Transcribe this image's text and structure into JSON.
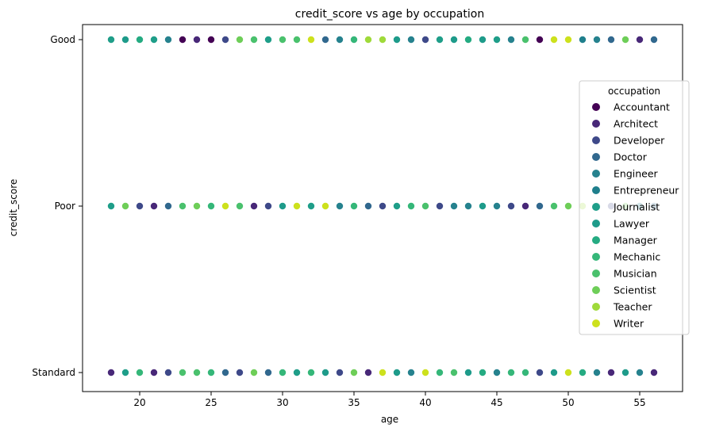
{
  "chart_data": {
    "type": "scatter",
    "title": "credit_score vs age by occupation",
    "xlabel": "age",
    "ylabel": "credit_score",
    "xlim": [
      16,
      58
    ],
    "xticks": [
      20,
      25,
      30,
      35,
      40,
      45,
      50,
      55
    ],
    "categories_y": [
      "Good",
      "Poor",
      "Standard"
    ],
    "grid": false,
    "legend": {
      "title": "occupation",
      "placement": "center-right",
      "entries": [
        {
          "name": "Accountant",
          "color": "#440154"
        },
        {
          "name": "Architect",
          "color": "#482878"
        },
        {
          "name": "Developer",
          "color": "#3e4989"
        },
        {
          "name": "Doctor",
          "color": "#31688e"
        },
        {
          "name": "Engineer",
          "color": "#26828e"
        },
        {
          "name": "Entrepreneur",
          "color": "#1f7f8c"
        },
        {
          "name": "Journalist",
          "color": "#1f9e89"
        },
        {
          "name": "Lawyer",
          "color": "#1e9b8a"
        },
        {
          "name": "Manager",
          "color": "#25ab82"
        },
        {
          "name": "Mechanic",
          "color": "#35b779"
        },
        {
          "name": "Musician",
          "color": "#4ac16d"
        },
        {
          "name": "Scientist",
          "color": "#6ece58"
        },
        {
          "name": "Teacher",
          "color": "#9fda3a"
        },
        {
          "name": "Writer",
          "color": "#cde11d"
        }
      ]
    },
    "series": [
      {
        "y": "Good",
        "x": [
          18,
          19,
          20,
          21,
          22,
          23,
          24,
          25,
          26,
          27,
          28,
          29,
          30,
          31,
          32,
          33,
          34,
          35,
          36,
          37,
          38,
          39,
          40,
          41,
          42,
          43,
          44,
          45,
          46,
          47,
          48,
          49,
          50,
          51,
          52,
          53,
          54,
          55,
          56
        ],
        "occupations": [
          "Journalist",
          "Lawyer",
          "Manager",
          "Journalist",
          "Engineer",
          "Accountant",
          "Architect",
          "Accountant",
          "Developer",
          "Scientist",
          "Musician",
          "Journalist",
          "Musician",
          "Musician",
          "Writer",
          "Doctor",
          "Engineer",
          "Mechanic",
          "Teacher",
          "Teacher",
          "Lawyer",
          "Engineer",
          "Developer",
          "Journalist",
          "Lawyer",
          "Manager",
          "Lawyer",
          "Journalist",
          "Engineer",
          "Musician",
          "Accountant",
          "Writer",
          "Writer",
          "Entrepreneur",
          "Engineer",
          "Doctor",
          "Scientist",
          "Architect",
          "Doctor"
        ]
      },
      {
        "y": "Poor",
        "x": [
          18,
          19,
          20,
          21,
          22,
          23,
          24,
          25,
          26,
          27,
          28,
          29,
          30,
          31,
          32,
          33,
          34,
          35,
          36,
          37,
          38,
          39,
          40,
          41,
          42,
          43,
          44,
          45,
          46,
          47,
          48,
          49,
          50,
          51,
          52,
          53,
          54,
          55,
          56
        ],
        "occupations": [
          "Journalist",
          "Scientist",
          "Developer",
          "Architect",
          "Doctor",
          "Musician",
          "Scientist",
          "Mechanic",
          "Writer",
          "Musician",
          "Architect",
          "Developer",
          "Lawyer",
          "Writer",
          "Journalist",
          "Writer",
          "Engineer",
          "Mechanic",
          "Doctor",
          "Developer",
          "Journalist",
          "Mechanic",
          "Musician",
          "Developer",
          "Engineer",
          "Engineer",
          "Lawyer",
          "Engineer",
          "Developer",
          "Architect",
          "Doctor",
          "Musician",
          "Scientist",
          "Teacher",
          "Lawyer",
          "Developer",
          "Scientist",
          "Entrepreneur",
          "Doctor"
        ]
      },
      {
        "y": "Standard",
        "x": [
          18,
          19,
          20,
          21,
          22,
          23,
          24,
          25,
          26,
          27,
          28,
          29,
          30,
          31,
          32,
          33,
          34,
          35,
          36,
          37,
          38,
          39,
          40,
          41,
          42,
          43,
          44,
          45,
          46,
          47,
          48,
          49,
          50,
          51,
          52,
          53,
          54,
          55,
          56
        ],
        "occupations": [
          "Architect",
          "Journalist",
          "Mechanic",
          "Architect",
          "Developer",
          "Musician",
          "Musician",
          "Mechanic",
          "Doctor",
          "Developer",
          "Scientist",
          "Doctor",
          "Mechanic",
          "Journalist",
          "Mechanic",
          "Lawyer",
          "Developer",
          "Scientist",
          "Architect",
          "Writer",
          "Lawyer",
          "Engineer",
          "Writer",
          "Mechanic",
          "Musician",
          "Lawyer",
          "Manager",
          "Engineer",
          "Mechanic",
          "Mechanic",
          "Developer",
          "Lawyer",
          "Writer",
          "Manager",
          "Engineer",
          "Architect",
          "Lawyer",
          "Engineer",
          "Architect"
        ]
      }
    ]
  }
}
